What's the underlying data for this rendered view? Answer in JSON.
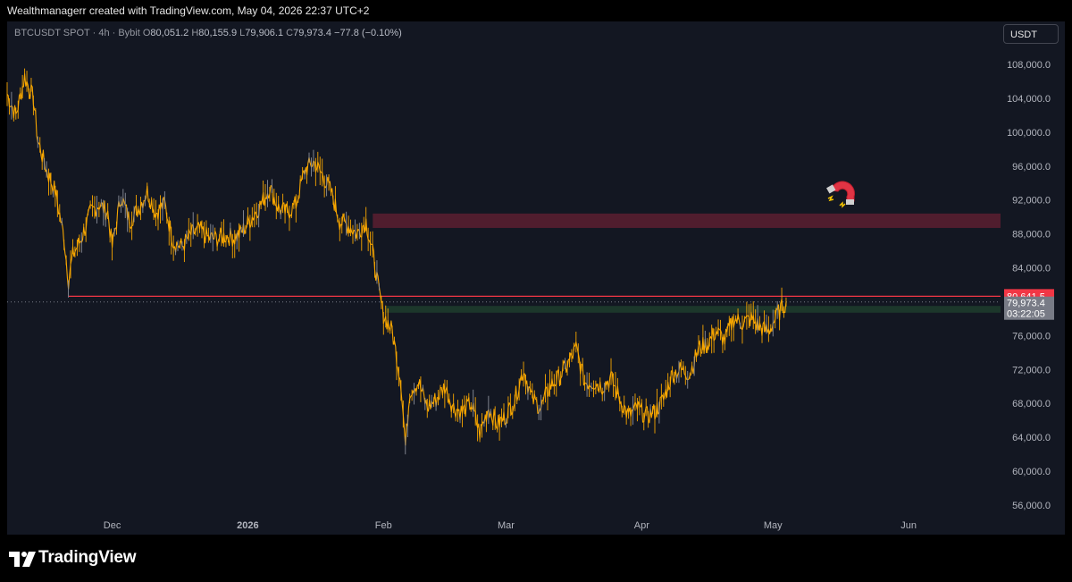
{
  "watermark": "Wealthmanagerr created with TradingView.com, May 04, 2026 22:37 UTC+2",
  "legend": {
    "symbol": "BTCUSDT SPOT · 4h · Bybit",
    "o_label": "O",
    "o": "80,051.2",
    "h_label": "H",
    "h": "80,155.9",
    "l_label": "L",
    "l": "79,906.1",
    "c_label": "C",
    "c": "79,973.4",
    "change": "−77.8 (−0.10%)"
  },
  "currency_button": "USDT",
  "brand": "TradingView",
  "magnet_icon": "magnet-icon",
  "colors": {
    "background": "#131722",
    "candle": "#f7a600",
    "resistance_zone": "#5c1f30",
    "support_zone": "#1e3b2c",
    "level_line": "#f23645",
    "price_tag": "#787b86"
  },
  "chart_data": {
    "type": "line",
    "title": "",
    "xlabel": "",
    "ylabel": "",
    "grid": false,
    "ylim": [
      54000,
      111000
    ],
    "y_ticks": [
      "108,000.0",
      "104,000.0",
      "100,000.0",
      "96,000.0",
      "92,000.0",
      "88,000.0",
      "84,000.0",
      "80,000.0",
      "76,000.0",
      "72,000.0",
      "68,000.0",
      "64,000.0",
      "60,000.0",
      "56,000.0"
    ],
    "y_tick_values": [
      108000,
      104000,
      100000,
      96000,
      92000,
      88000,
      84000,
      80000,
      76000,
      72000,
      68000,
      64000,
      60000,
      56000
    ],
    "x_ticks": [
      {
        "label": "Dec",
        "date": "2025-12-01"
      },
      {
        "label": "2026",
        "date": "2026-01-01",
        "bold": true
      },
      {
        "label": "Feb",
        "date": "2026-02-01"
      },
      {
        "label": "Mar",
        "date": "2026-03-01"
      },
      {
        "label": "Apr",
        "date": "2026-04-01"
      },
      {
        "label": "May",
        "date": "2026-05-01"
      },
      {
        "label": "Jun",
        "date": "2026-06-01"
      }
    ],
    "x_range": [
      "2025-11-07",
      "2026-06-22"
    ],
    "series": [
      {
        "values": [
          [
            "2025-11-07",
            104500
          ],
          [
            "2025-11-09",
            102000
          ],
          [
            "2025-11-11",
            106500
          ],
          [
            "2025-11-13",
            104000
          ],
          [
            "2025-11-14",
            99000
          ],
          [
            "2025-11-16",
            95500
          ],
          [
            "2025-11-18",
            93000
          ],
          [
            "2025-11-20",
            87500
          ],
          [
            "2025-11-21",
            82500
          ],
          [
            "2025-11-22",
            85500
          ],
          [
            "2025-11-24",
            87500
          ],
          [
            "2025-11-26",
            90500
          ],
          [
            "2025-11-28",
            91500
          ],
          [
            "2025-11-30",
            90500
          ],
          [
            "2025-12-01",
            86500
          ],
          [
            "2025-12-03",
            92500
          ],
          [
            "2025-12-05",
            89500
          ],
          [
            "2025-12-07",
            91000
          ],
          [
            "2025-12-09",
            93000
          ],
          [
            "2025-12-11",
            90500
          ],
          [
            "2025-12-13",
            91500
          ],
          [
            "2025-12-15",
            87000
          ],
          [
            "2025-12-17",
            86500
          ],
          [
            "2025-12-19",
            88000
          ],
          [
            "2025-12-21",
            88500
          ],
          [
            "2025-12-23",
            87500
          ],
          [
            "2025-12-25",
            87500
          ],
          [
            "2025-12-27",
            87800
          ],
          [
            "2025-12-29",
            87500
          ],
          [
            "2025-12-31",
            88500
          ],
          [
            "2026-01-02",
            90000
          ],
          [
            "2026-01-04",
            91500
          ],
          [
            "2026-01-06",
            93500
          ],
          [
            "2026-01-08",
            91000
          ],
          [
            "2026-01-10",
            90500
          ],
          [
            "2026-01-12",
            91500
          ],
          [
            "2026-01-14",
            95500
          ],
          [
            "2026-01-16",
            96500
          ],
          [
            "2026-01-18",
            95000
          ],
          [
            "2026-01-20",
            93000
          ],
          [
            "2026-01-22",
            89500
          ],
          [
            "2026-01-24",
            89000
          ],
          [
            "2026-01-26",
            88000
          ],
          [
            "2026-01-28",
            89500
          ],
          [
            "2026-01-30",
            84500
          ],
          [
            "2026-01-31",
            81000
          ],
          [
            "2026-02-01",
            78500
          ],
          [
            "2026-02-03",
            76500
          ],
          [
            "2026-02-05",
            70500
          ],
          [
            "2026-02-06",
            63000
          ],
          [
            "2026-02-07",
            69500
          ],
          [
            "2026-02-09",
            70500
          ],
          [
            "2026-02-11",
            67500
          ],
          [
            "2026-02-13",
            68500
          ],
          [
            "2026-02-15",
            70000
          ],
          [
            "2026-02-17",
            67500
          ],
          [
            "2026-02-19",
            67000
          ],
          [
            "2026-02-21",
            68000
          ],
          [
            "2026-02-23",
            64500
          ],
          [
            "2026-02-25",
            67500
          ],
          [
            "2026-02-27",
            65500
          ],
          [
            "2026-03-01",
            66500
          ],
          [
            "2026-03-03",
            68500
          ],
          [
            "2026-03-05",
            72000
          ],
          [
            "2026-03-07",
            68500
          ],
          [
            "2026-03-09",
            67500
          ],
          [
            "2026-03-11",
            70000
          ],
          [
            "2026-03-13",
            71000
          ],
          [
            "2026-03-15",
            72500
          ],
          [
            "2026-03-17",
            74500
          ],
          [
            "2026-03-19",
            70500
          ],
          [
            "2026-03-21",
            70500
          ],
          [
            "2026-03-23",
            70000
          ],
          [
            "2026-03-25",
            71000
          ],
          [
            "2026-03-27",
            68500
          ],
          [
            "2026-03-29",
            66500
          ],
          [
            "2026-03-31",
            67500
          ],
          [
            "2026-04-02",
            66500
          ],
          [
            "2026-04-04",
            67000
          ],
          [
            "2026-04-06",
            68500
          ],
          [
            "2026-04-08",
            71500
          ],
          [
            "2026-04-10",
            72000
          ],
          [
            "2026-04-12",
            71500
          ],
          [
            "2026-04-14",
            74500
          ],
          [
            "2026-04-16",
            75000
          ],
          [
            "2026-04-18",
            76500
          ],
          [
            "2026-04-20",
            75500
          ],
          [
            "2026-04-22",
            78000
          ],
          [
            "2026-04-24",
            77500
          ],
          [
            "2026-04-26",
            78000
          ],
          [
            "2026-04-28",
            77000
          ],
          [
            "2026-04-30",
            76500
          ],
          [
            "2026-05-02",
            78500
          ],
          [
            "2026-05-04",
            79973.4
          ]
        ]
      }
    ],
    "annotations": {
      "resistance_zone": [
        88700,
        90400
      ],
      "support_zone": [
        78700,
        79500
      ],
      "level_line": 80641.5,
      "level_line_start": "2025-11-21",
      "last_price_line": 79973.4,
      "price_tags": {
        "level": "80,641.5",
        "last_price": "79,973.4",
        "countdown": "03:22:05"
      }
    }
  }
}
